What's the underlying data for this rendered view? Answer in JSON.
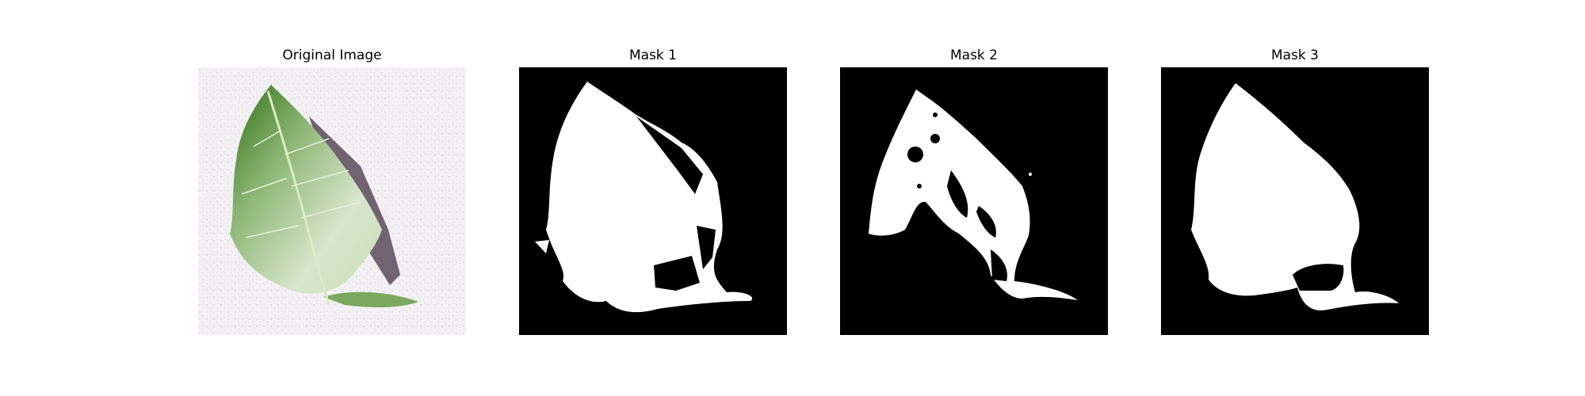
{
  "panels": [
    {
      "title": "Original Image"
    },
    {
      "title": "Mask 1"
    },
    {
      "title": "Mask 2"
    },
    {
      "title": "Mask 3"
    }
  ],
  "colors": {
    "background": "#f4f1f5",
    "leaf_dark": "#3e7d1c",
    "leaf_light": "#d8e6cc",
    "shadow": "#5a4a5c",
    "mask_bg": "#000000",
    "mask_fg": "#ffffff"
  }
}
